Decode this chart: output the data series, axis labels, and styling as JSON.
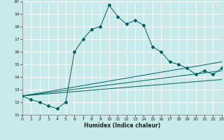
{
  "xlabel": "Humidex (Indice chaleur)",
  "xlim": [
    0,
    23
  ],
  "ylim": [
    11,
    20
  ],
  "xticks": [
    0,
    1,
    2,
    3,
    4,
    5,
    6,
    7,
    8,
    9,
    10,
    11,
    12,
    13,
    14,
    15,
    16,
    17,
    18,
    19,
    20,
    21,
    22,
    23
  ],
  "yticks": [
    11,
    12,
    13,
    14,
    15,
    16,
    17,
    18,
    19,
    20
  ],
  "bg_color": "#c8eaea",
  "line_color": "#006060",
  "grid_color": "#b0d0d0",
  "main_series": {
    "x": [
      0,
      1,
      2,
      3,
      4,
      5,
      6,
      7,
      8,
      9,
      10,
      11,
      12,
      13,
      14,
      15,
      16,
      17,
      18,
      19,
      20,
      21,
      22,
      23
    ],
    "y": [
      12.5,
      12.2,
      12.0,
      11.7,
      11.5,
      12.0,
      16.0,
      17.0,
      17.8,
      18.0,
      19.7,
      18.8,
      18.2,
      18.5,
      18.1,
      16.4,
      16.0,
      15.2,
      15.0,
      14.7,
      14.2,
      14.5,
      14.2,
      14.7
    ]
  },
  "linear_series": [
    {
      "x0": 0,
      "y0": 12.5,
      "x1": 23,
      "y1": 15.2
    },
    {
      "x0": 0,
      "y0": 12.5,
      "x1": 23,
      "y1": 14.5
    },
    {
      "x0": 0,
      "y0": 12.5,
      "x1": 23,
      "y1": 13.8
    }
  ]
}
